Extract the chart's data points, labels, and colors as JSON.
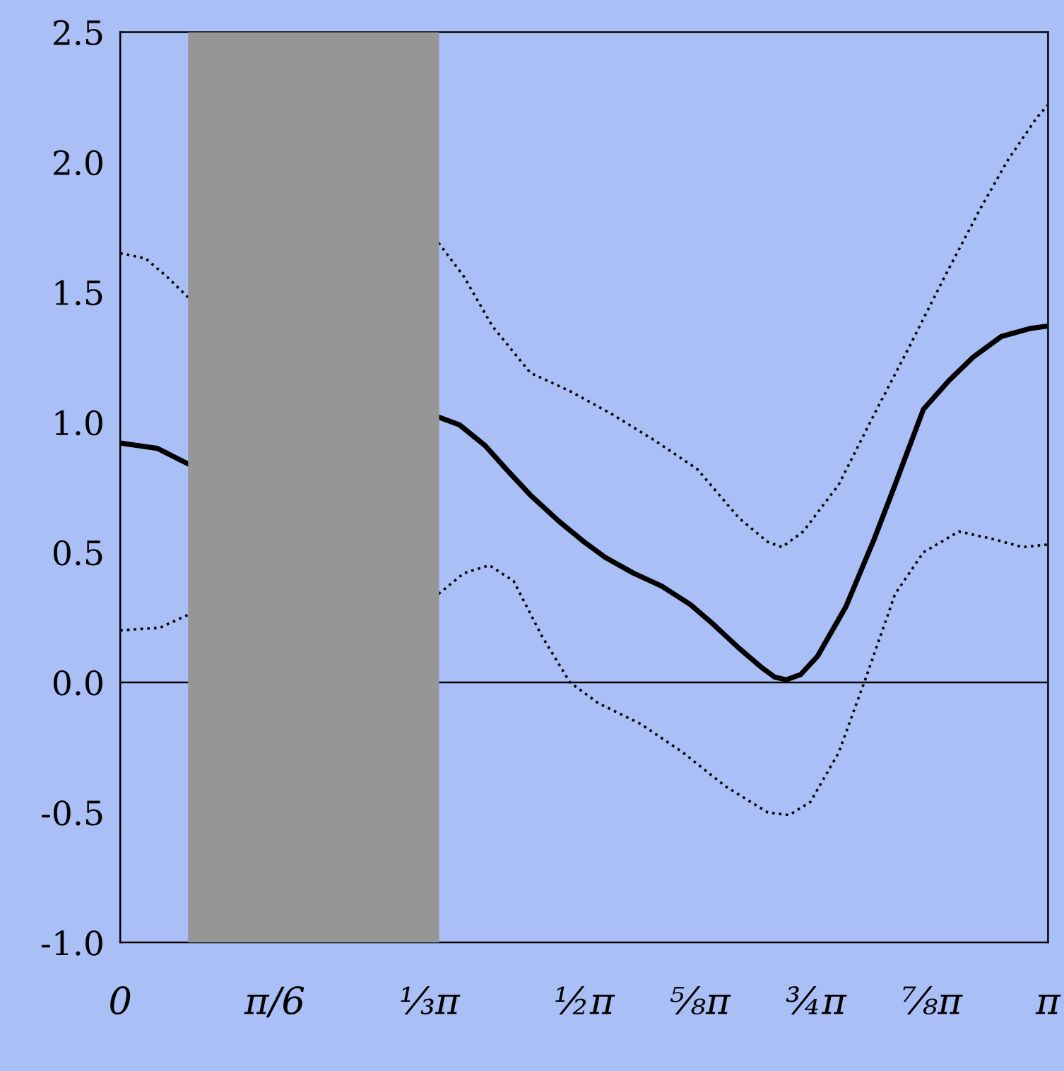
{
  "chart_data": {
    "type": "line",
    "line_style": "solid",
    "marker": "none",
    "grid": false,
    "legend": false,
    "xlim": [
      0,
      3.142
    ],
    "ylim": [
      -1.0,
      2.5
    ],
    "xticks": [
      {
        "value": 0,
        "label": "0"
      },
      {
        "value": 0.5236,
        "label": "π/6"
      },
      {
        "value": 1.0472,
        "label": "⅓π"
      },
      {
        "value": 1.5708,
        "label": "½π"
      },
      {
        "value": 1.9635,
        "label": "⅝π"
      },
      {
        "value": 2.3562,
        "label": "¾π"
      },
      {
        "value": 2.7489,
        "label": "⅞π"
      },
      {
        "value": 3.142,
        "label": "π"
      }
    ],
    "yticks": [
      {
        "value": -1.0,
        "label": "-1.0"
      },
      {
        "value": -0.5,
        "label": "-0.5"
      },
      {
        "value": 0.0,
        "label": "0.0"
      },
      {
        "value": 0.5,
        "label": "0.5"
      },
      {
        "value": 1.0,
        "label": "1.0"
      },
      {
        "value": 1.5,
        "label": "1.5"
      },
      {
        "value": 2.0,
        "label": "2.0"
      },
      {
        "value": 2.5,
        "label": "2.5"
      }
    ],
    "ref_lines": [
      {
        "axis": "y",
        "value": 0,
        "color": "#000000",
        "line_style": "solid"
      }
    ],
    "bands": [
      {
        "axis": "x",
        "from": 0.23,
        "to": 1.08,
        "color": "#969696"
      }
    ],
    "series": [
      {
        "color": "#000000",
        "x": [
          0,
          0.125,
          0.23,
          0.6,
          1.078,
          1.149,
          1.236,
          1.307,
          1.389,
          1.485,
          1.571,
          1.643,
          1.738,
          1.834,
          1.93,
          2.002,
          2.097,
          2.169,
          2.217,
          2.256,
          2.304,
          2.361,
          2.457,
          2.553,
          2.624,
          2.72,
          2.806,
          2.888,
          2.984,
          3.079,
          3.142
        ],
        "values": [
          0.92,
          0.9,
          0.84,
          null,
          1.02,
          0.99,
          0.91,
          0.82,
          0.72,
          0.62,
          0.54,
          0.48,
          0.42,
          0.37,
          0.3,
          0.23,
          0.13,
          0.06,
          0.02,
          0.01,
          0.03,
          0.1,
          0.29,
          0.55,
          0.76,
          1.05,
          1.16,
          1.25,
          1.33,
          1.36,
          1.37
        ]
      },
      {
        "color": "#000000",
        "line_style": "dotted",
        "x": [
          0,
          0.086,
          0.158,
          0.23,
          0.6,
          1.078,
          1.164,
          1.26,
          1.389,
          1.523,
          1.667,
          1.81,
          1.954,
          2.097,
          2.193,
          2.241,
          2.313,
          2.433,
          2.553,
          2.672,
          2.792,
          2.912,
          3.007,
          3.103,
          3.142
        ],
        "values": [
          1.65,
          1.63,
          1.56,
          1.48,
          null,
          1.69,
          1.56,
          1.37,
          1.19,
          1.12,
          1.03,
          0.93,
          0.82,
          0.63,
          0.54,
          0.52,
          0.58,
          0.76,
          1.03,
          1.29,
          1.56,
          1.82,
          2.01,
          2.17,
          2.22
        ]
      },
      {
        "color": "#000000",
        "line_style": "dotted",
        "x": [
          0,
          0.134,
          0.23,
          0.6,
          1.078,
          1.164,
          1.25,
          1.332,
          1.427,
          1.523,
          1.619,
          1.763,
          1.906,
          2.05,
          2.193,
          2.265,
          2.337,
          2.433,
          2.529,
          2.624,
          2.72,
          2.84,
          2.96,
          3.055,
          3.142
        ],
        "values": [
          0.2,
          0.21,
          0.26,
          null,
          0.34,
          0.42,
          0.45,
          0.39,
          0.18,
          0.0,
          -0.08,
          -0.16,
          -0.27,
          -0.4,
          -0.5,
          -0.51,
          -0.46,
          -0.27,
          0.03,
          0.34,
          0.5,
          0.58,
          0.55,
          0.52,
          0.53
        ]
      }
    ]
  }
}
